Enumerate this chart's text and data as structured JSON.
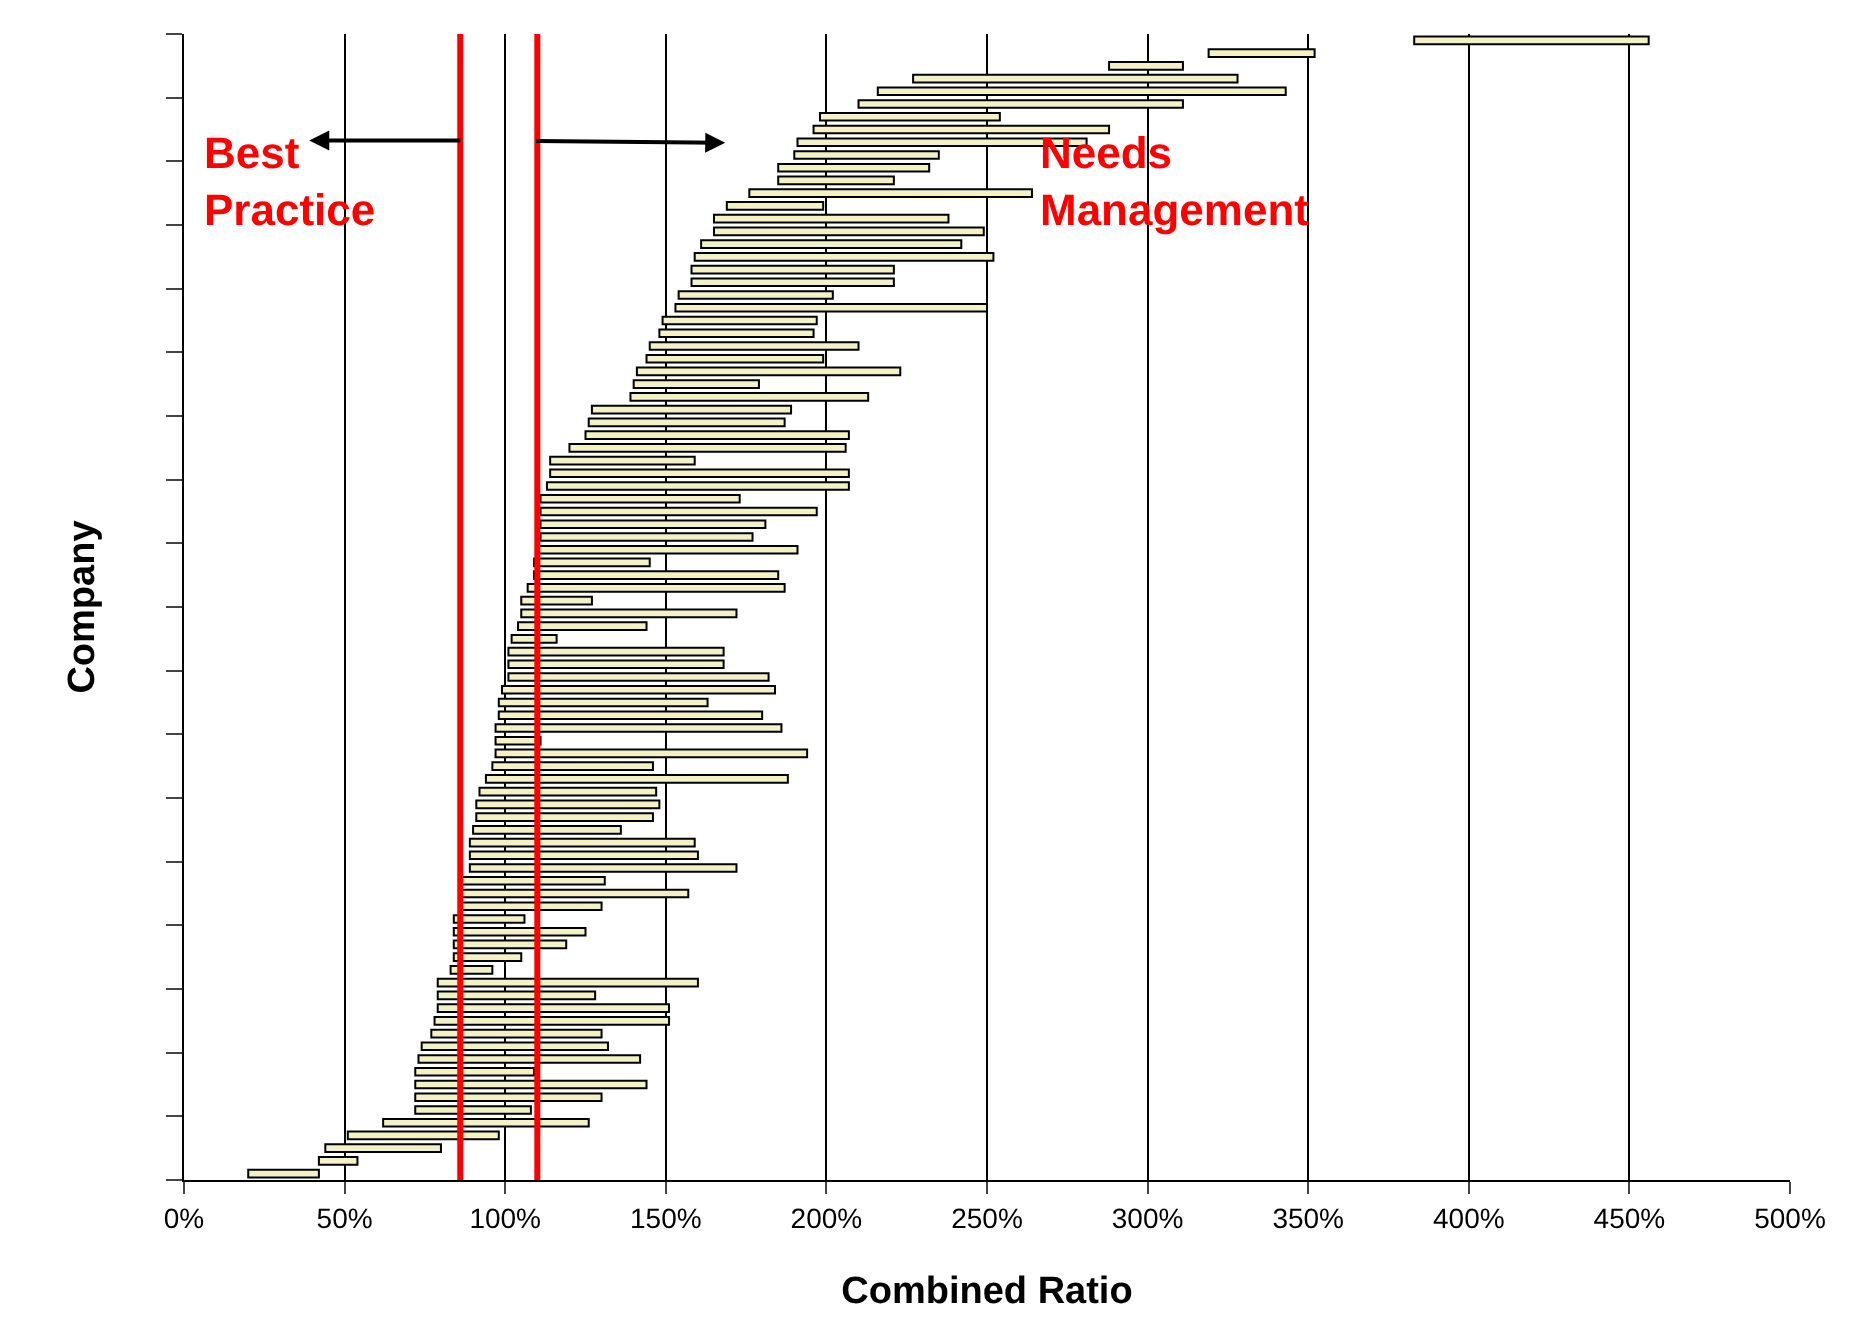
{
  "chart_data": {
    "type": "bar",
    "orientation": "horizontal",
    "xlabel": "Combined Ratio",
    "ylabel": "Company",
    "categories": [
      null,
      null,
      null,
      null,
      null,
      null,
      null,
      null,
      null,
      null,
      null,
      null,
      null,
      null,
      null,
      null,
      null,
      null,
      null,
      null,
      null,
      null,
      null,
      null,
      null,
      null,
      null,
      null,
      null,
      null,
      null,
      null,
      null,
      null,
      null,
      null,
      null,
      null,
      null,
      null,
      null,
      null,
      null,
      null,
      null,
      null,
      null,
      null,
      null,
      null,
      null,
      null,
      null,
      null,
      null,
      null,
      null,
      null,
      null,
      null,
      null,
      null,
      null,
      null,
      null,
      null,
      null,
      null,
      null,
      null,
      null,
      null,
      null,
      null,
      null,
      null,
      null,
      null,
      null,
      null,
      null,
      null,
      null,
      null,
      null,
      null,
      null,
      null,
      null,
      null
    ],
    "base": [
      383,
      319,
      288,
      227,
      216,
      210,
      198,
      196,
      191,
      190,
      185,
      185,
      176,
      169,
      165,
      165,
      161,
      159,
      158,
      158,
      154,
      153,
      149,
      148,
      145,
      144,
      141,
      140,
      139,
      127,
      126,
      125,
      120,
      114,
      114,
      113,
      111,
      111,
      111,
      111,
      110,
      109,
      109,
      107,
      105,
      105,
      104,
      102,
      101,
      101,
      101,
      99,
      98,
      98,
      97,
      97,
      97,
      96,
      94,
      92,
      91,
      91,
      90,
      89,
      89,
      89,
      86,
      86,
      86,
      84,
      84,
      84,
      84,
      83,
      79,
      79,
      79,
      78,
      77,
      74,
      73,
      72,
      72,
      72,
      72,
      62,
      51,
      44,
      42,
      20
    ],
    "values": [
      73,
      33,
      23,
      101,
      127,
      101,
      56,
      92,
      90,
      45,
      47,
      36,
      88,
      30,
      73,
      84,
      81,
      93,
      63,
      63,
      48,
      97,
      48,
      48,
      65,
      55,
      82,
      39,
      74,
      62,
      61,
      82,
      86,
      45,
      93,
      94,
      62,
      86,
      70,
      66,
      81,
      36,
      76,
      80,
      22,
      67,
      40,
      14,
      67,
      67,
      81,
      85,
      65,
      82,
      89,
      14,
      97,
      50,
      94,
      55,
      57,
      55,
      46,
      70,
      71,
      83,
      45,
      71,
      44,
      22,
      41,
      35,
      21,
      13,
      81,
      49,
      72,
      73,
      53,
      58,
      69,
      37,
      72,
      58,
      36,
      64,
      47,
      36,
      12,
      22
    ],
    "color": "#f2f2c4",
    "xlim": [
      0,
      500
    ],
    "xticks": [
      {
        "value": 0,
        "label": "0%"
      },
      {
        "value": 50,
        "label": "50%"
      },
      {
        "value": 100,
        "label": "100%"
      },
      {
        "value": 150,
        "label": "150%"
      },
      {
        "value": 200,
        "label": "200%"
      },
      {
        "value": 250,
        "label": "250%"
      },
      {
        "value": 300,
        "label": "300%"
      },
      {
        "value": 350,
        "label": "350%"
      },
      {
        "value": 400,
        "label": "400%"
      },
      {
        "value": 450,
        "label": "450%"
      },
      {
        "value": 500,
        "label": "500%"
      }
    ],
    "ref_lines": [
      {
        "axis": "x",
        "value": 86,
        "color": "#ff0000"
      },
      {
        "axis": "x",
        "value": 110,
        "color": "#ff0000"
      }
    ],
    "annotations": [
      "Best\nPractice",
      "Needs\nManagement"
    ],
    "grid": "x",
    "legend": false,
    "tick_labels": "x"
  }
}
